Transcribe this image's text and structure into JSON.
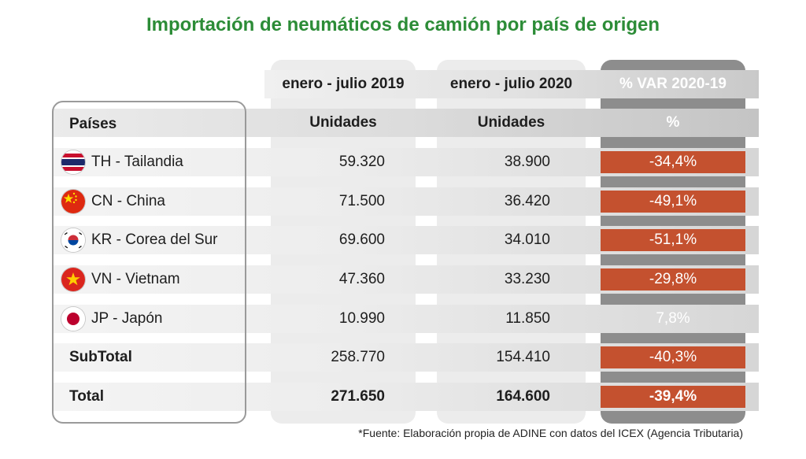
{
  "title": "Importación de neumáticos de camión por país de origen",
  "headers": {
    "period_2019": "enero - julio 2019",
    "period_2020": "enero - julio 2020",
    "var_title": "% VAR 2020-19",
    "countries": "Países",
    "units_2019": "Unidades",
    "units_2020": "Unidades",
    "var_unit": "%"
  },
  "rows": [
    {
      "country": "TH - Tailandia",
      "flag": "thailand-flag-icon",
      "v2019": "59.320",
      "v2020": "38.900",
      "var": "-34,4%",
      "sign": "neg"
    },
    {
      "country": "CN - China",
      "flag": "china-flag-icon",
      "v2019": "71.500",
      "v2020": "36.420",
      "var": "-49,1%",
      "sign": "neg"
    },
    {
      "country": "KR - Corea del Sur",
      "flag": "south-korea-flag-icon",
      "v2019": "69.600",
      "v2020": "34.010",
      "var": "-51,1%",
      "sign": "neg"
    },
    {
      "country": "VN - Vietnam",
      "flag": "vietnam-flag-icon",
      "v2019": "47.360",
      "v2020": "33.230",
      "var": "-29,8%",
      "sign": "neg"
    },
    {
      "country": "JP - Japón",
      "flag": "japan-flag-icon",
      "v2019": "10.990",
      "v2020": "11.850",
      "var": "7,8%",
      "sign": "pos"
    }
  ],
  "subtotal": {
    "label": "SubTotal",
    "v2019": "258.770",
    "v2020": "154.410",
    "var": "-40,3%"
  },
  "total": {
    "label": "Total",
    "v2019": "271.650",
    "v2020": "164.600",
    "var": "-39,4%"
  },
  "source": "*Fuente: Elaboración propia de ADINE con datos del ICEX (Agencia Tributaria)",
  "colors": {
    "title": "#2c8c37",
    "negative": "#c4512f",
    "var_column": "#8d8d8d"
  },
  "chart_data": {
    "type": "table",
    "title": "Importación de neumáticos de camión por país de origen",
    "columns": [
      "Países",
      "enero - julio 2019 (Unidades)",
      "enero - julio 2020 (Unidades)",
      "% VAR 2020-19"
    ],
    "categories": [
      "TH - Tailandia",
      "CN - China",
      "KR - Corea del Sur",
      "VN - Vietnam",
      "JP - Japón",
      "SubTotal",
      "Total"
    ],
    "series": [
      {
        "name": "enero - julio 2019",
        "values": [
          59320,
          71500,
          69600,
          47360,
          10990,
          258770,
          271650
        ]
      },
      {
        "name": "enero - julio 2020",
        "values": [
          38900,
          36420,
          34010,
          33230,
          11850,
          154410,
          164600
        ]
      },
      {
        "name": "% VAR 2020-19",
        "values": [
          -34.4,
          -49.1,
          -51.1,
          -29.8,
          7.8,
          -40.3,
          -39.4
        ]
      }
    ]
  }
}
